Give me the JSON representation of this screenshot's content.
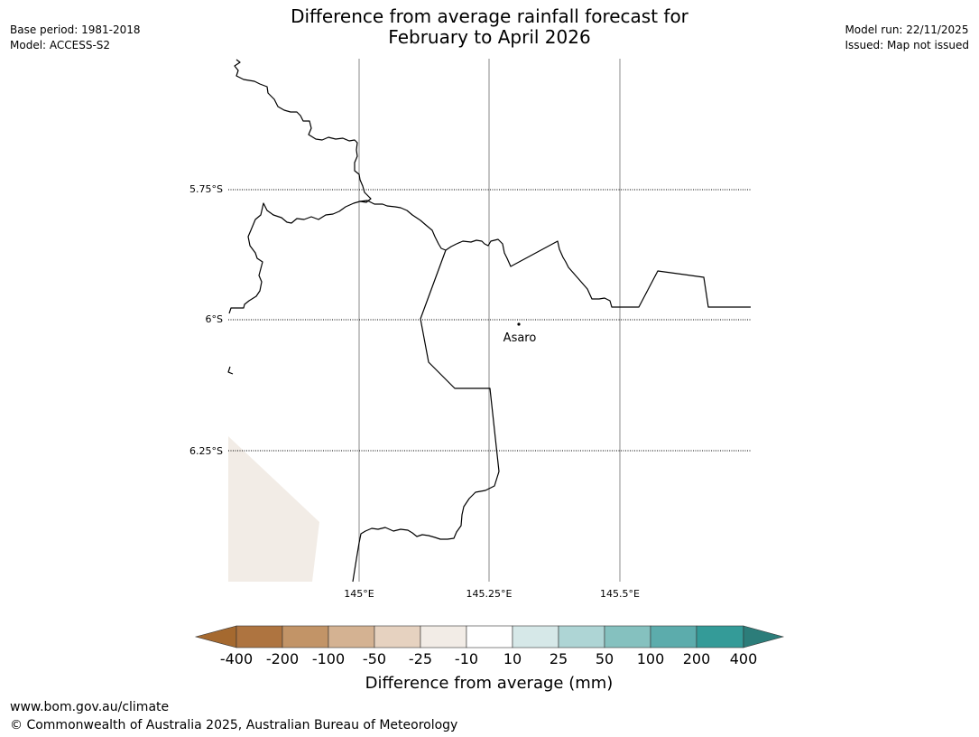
{
  "title": {
    "line1": "Difference from average rainfall forecast for",
    "line2": "February to April 2026"
  },
  "metadata": {
    "base_period": "Base period: 1981-2018",
    "model": "Model: ACCESS-S2",
    "model_run": "Model run: 22/11/2025",
    "issued": "Issued: Map not issued"
  },
  "map": {
    "latitude_labels": [
      "5.75°S",
      "6°S",
      "6.25°S"
    ],
    "longitude_labels": [
      "145°E",
      "145.25°E",
      "145.5°E"
    ],
    "place": {
      "name": "Asaro"
    },
    "colors": {
      "boundary": "#000000",
      "fill_-25_-10": "#f2ece6",
      "meridian": "#888888"
    }
  },
  "colorbar": {
    "title": "Difference from average (mm)",
    "tick_labels": [
      "-400",
      "-200",
      "-100",
      "-50",
      "-25",
      "-10",
      "10",
      "25",
      "50",
      "100",
      "200",
      "400"
    ],
    "colors": [
      "#a5692f",
      "#ae7440",
      "#c29467",
      "#d4b292",
      "#e6d2c0",
      "#f2ece6",
      "#ffffff",
      "#d6e8e8",
      "#aed5d5",
      "#85c1bf",
      "#5cacac",
      "#349b98",
      "#2c7d7a"
    ]
  },
  "footer": {
    "url": "www.bom.gov.au/climate",
    "copyright": "© Commonwealth of Australia 2025, Australian Bureau of Meteorology"
  }
}
